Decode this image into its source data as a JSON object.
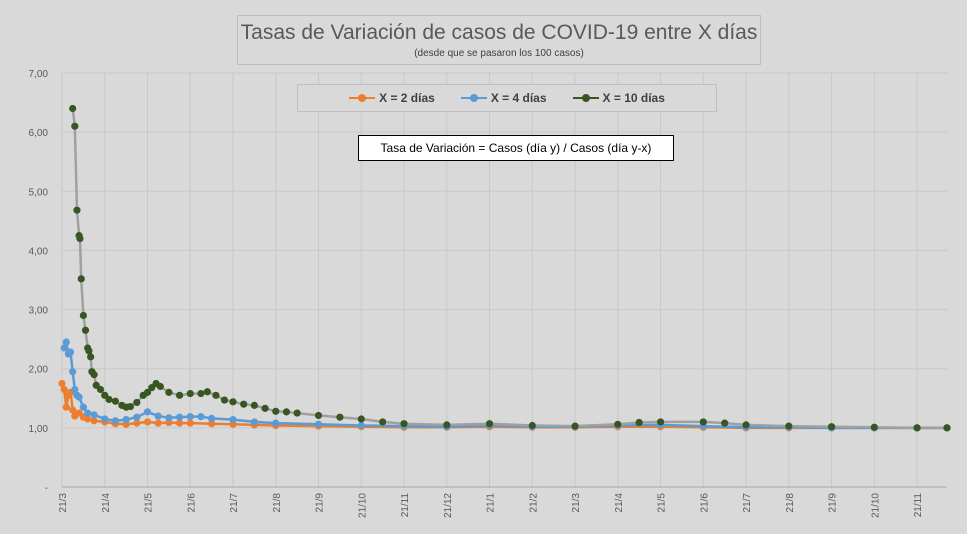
{
  "chart_data": {
    "type": "line",
    "title": "Tasas de Variación de casos de COVID-19 entre X días",
    "subtitle": "(desde que se pasaron los 100 casos)",
    "annotation": "Tasa de Variación = Casos (día y) / Casos (día y-x)",
    "y_ticks": [
      "-",
      "1,00",
      "2,00",
      "3,00",
      "4,00",
      "5,00",
      "6,00",
      "7,00"
    ],
    "ylim": [
      0,
      7
    ],
    "x_ticks": [
      "21/3",
      "21/4",
      "21/5",
      "21/6",
      "21/7",
      "21/8",
      "21/9",
      "21/10",
      "21/11",
      "21/12",
      "21/1",
      "21/2",
      "21/3",
      "21/4",
      "21/5",
      "21/6",
      "21/7",
      "21/8",
      "21/9",
      "21/10",
      "21/11"
    ],
    "x_unit": "months since 21/3",
    "grid": true,
    "legend_position": "top",
    "series": [
      {
        "name": "X = 2 días",
        "color": "#ed7d31",
        "points": [
          [
            0,
            1.75
          ],
          [
            0.05,
            1.65
          ],
          [
            0.1,
            1.35
          ],
          [
            0.15,
            1.55
          ],
          [
            0.2,
            1.6
          ],
          [
            0.25,
            1.3
          ],
          [
            0.3,
            1.2
          ],
          [
            0.4,
            1.25
          ],
          [
            0.5,
            1.18
          ],
          [
            0.6,
            1.15
          ],
          [
            0.75,
            1.12
          ],
          [
            1,
            1.1
          ],
          [
            1.25,
            1.07
          ],
          [
            1.5,
            1.06
          ],
          [
            1.75,
            1.08
          ],
          [
            2,
            1.1
          ],
          [
            2.25,
            1.08
          ],
          [
            2.5,
            1.09
          ],
          [
            2.75,
            1.08
          ],
          [
            3,
            1.08
          ],
          [
            3.5,
            1.07
          ],
          [
            4,
            1.06
          ],
          [
            4.5,
            1.05
          ],
          [
            5,
            1.04
          ],
          [
            6,
            1.03
          ],
          [
            7,
            1.02
          ],
          [
            8,
            1.01
          ],
          [
            9,
            1.01
          ],
          [
            10,
            1.02
          ],
          [
            11,
            1.01
          ],
          [
            12,
            1.01
          ],
          [
            13,
            1.02
          ],
          [
            14,
            1.02
          ],
          [
            15,
            1.01
          ],
          [
            16,
            1.0
          ],
          [
            17,
            1.0
          ],
          [
            18,
            1.0
          ],
          [
            19,
            1.0
          ],
          [
            20,
            1.0
          ],
          [
            20.7,
            1.0
          ]
        ]
      },
      {
        "name": "X = 4 días",
        "color": "#5b9bd5",
        "points": [
          [
            0.05,
            2.35
          ],
          [
            0.1,
            2.45
          ],
          [
            0.15,
            2.25
          ],
          [
            0.2,
            2.28
          ],
          [
            0.25,
            1.95
          ],
          [
            0.3,
            1.65
          ],
          [
            0.35,
            1.55
          ],
          [
            0.4,
            1.52
          ],
          [
            0.5,
            1.35
          ],
          [
            0.6,
            1.25
          ],
          [
            0.75,
            1.22
          ],
          [
            1,
            1.15
          ],
          [
            1.25,
            1.12
          ],
          [
            1.5,
            1.14
          ],
          [
            1.75,
            1.18
          ],
          [
            2,
            1.27
          ],
          [
            2.25,
            1.2
          ],
          [
            2.5,
            1.17
          ],
          [
            2.75,
            1.18
          ],
          [
            3,
            1.19
          ],
          [
            3.25,
            1.19
          ],
          [
            3.5,
            1.16
          ],
          [
            4,
            1.14
          ],
          [
            4.5,
            1.1
          ],
          [
            5,
            1.08
          ],
          [
            6,
            1.06
          ],
          [
            7,
            1.04
          ],
          [
            8,
            1.03
          ],
          [
            9,
            1.02
          ],
          [
            10,
            1.04
          ],
          [
            11,
            1.02
          ],
          [
            12,
            1.02
          ],
          [
            13,
            1.04
          ],
          [
            14,
            1.05
          ],
          [
            15,
            1.03
          ],
          [
            16,
            1.01
          ],
          [
            17,
            1.01
          ],
          [
            18,
            1.0
          ],
          [
            19,
            1.0
          ],
          [
            20,
            1.0
          ],
          [
            20.7,
            1.0
          ]
        ]
      },
      {
        "name": "X = 10 días",
        "color": "#375623",
        "points": [
          [
            0.25,
            6.4
          ],
          [
            0.3,
            6.1
          ],
          [
            0.35,
            4.68
          ],
          [
            0.4,
            4.25
          ],
          [
            0.42,
            4.2
          ],
          [
            0.45,
            3.52
          ],
          [
            0.5,
            2.9
          ],
          [
            0.55,
            2.65
          ],
          [
            0.6,
            2.35
          ],
          [
            0.63,
            2.3
          ],
          [
            0.67,
            2.2
          ],
          [
            0.7,
            1.95
          ],
          [
            0.75,
            1.9
          ],
          [
            0.8,
            1.72
          ],
          [
            0.9,
            1.65
          ],
          [
            1,
            1.55
          ],
          [
            1.1,
            1.48
          ],
          [
            1.25,
            1.45
          ],
          [
            1.4,
            1.38
          ],
          [
            1.5,
            1.35
          ],
          [
            1.6,
            1.36
          ],
          [
            1.75,
            1.43
          ],
          [
            1.9,
            1.55
          ],
          [
            2,
            1.6
          ],
          [
            2.1,
            1.68
          ],
          [
            2.2,
            1.75
          ],
          [
            2.3,
            1.7
          ],
          [
            2.5,
            1.6
          ],
          [
            2.75,
            1.55
          ],
          [
            3,
            1.58
          ],
          [
            3.25,
            1.58
          ],
          [
            3.4,
            1.61
          ],
          [
            3.6,
            1.55
          ],
          [
            3.8,
            1.47
          ],
          [
            4,
            1.44
          ],
          [
            4.25,
            1.4
          ],
          [
            4.5,
            1.38
          ],
          [
            4.75,
            1.33
          ],
          [
            5,
            1.28
          ],
          [
            5.25,
            1.27
          ],
          [
            5.5,
            1.25
          ],
          [
            6,
            1.21
          ],
          [
            6.5,
            1.18
          ],
          [
            7,
            1.15
          ],
          [
            7.5,
            1.1
          ],
          [
            8,
            1.07
          ],
          [
            9,
            1.05
          ],
          [
            10,
            1.07
          ],
          [
            11,
            1.04
          ],
          [
            12,
            1.03
          ],
          [
            13,
            1.06
          ],
          [
            13.5,
            1.09
          ],
          [
            14,
            1.1
          ],
          [
            15,
            1.1
          ],
          [
            15.5,
            1.08
          ],
          [
            16,
            1.05
          ],
          [
            17,
            1.03
          ],
          [
            18,
            1.02
          ],
          [
            19,
            1.01
          ],
          [
            20,
            1.0
          ],
          [
            20.7,
            1.0
          ]
        ]
      }
    ]
  }
}
